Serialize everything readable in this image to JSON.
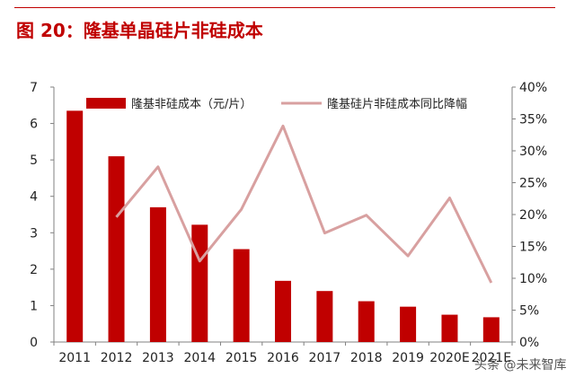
{
  "figure": {
    "title": "图 20：隆基单晶硅片非硅成本",
    "watermark": "头条 @未来智库"
  },
  "colors": {
    "title": "#c00000",
    "bar": "#c00000",
    "line": "#d8a0a0",
    "axis": "#808080",
    "text": "#222222"
  },
  "chart_data": {
    "type": "bar",
    "categories": [
      "2011",
      "2012",
      "2013",
      "2014",
      "2015",
      "2016",
      "2017",
      "2018",
      "2019",
      "2020E",
      "2021E"
    ],
    "series": [
      {
        "name": "隆基非硅成本（元/片）",
        "type": "bar",
        "axis": "left",
        "values": [
          6.35,
          5.1,
          3.7,
          3.22,
          2.55,
          1.68,
          1.4,
          1.12,
          0.97,
          0.75,
          0.68
        ]
      },
      {
        "name": "隆基硅片非硅成本同比降幅",
        "type": "line",
        "axis": "right",
        "values": [
          null,
          0.196,
          0.275,
          0.127,
          0.208,
          0.339,
          0.171,
          0.199,
          0.135,
          0.226,
          0.093
        ]
      }
    ],
    "y_left": {
      "min": 0,
      "max": 7,
      "ticks": [
        "0",
        "1",
        "2",
        "3",
        "4",
        "5",
        "6",
        "7"
      ]
    },
    "y_right": {
      "min": 0,
      "max": 0.4,
      "ticks": [
        "0%",
        "5%",
        "10%",
        "15%",
        "20%",
        "25%",
        "30%",
        "35%",
        "40%"
      ]
    },
    "grid": false,
    "legend_position": "top"
  }
}
